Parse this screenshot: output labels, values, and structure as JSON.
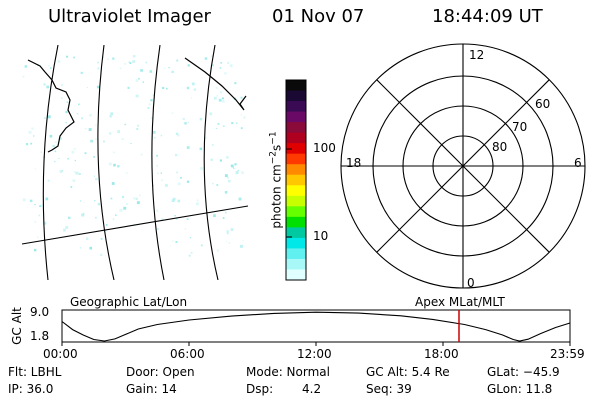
{
  "header": {
    "title": "Ultraviolet Imager",
    "date": "01 Nov 07",
    "time": "18:44:09 UT"
  },
  "panels": {
    "left_label": "Geographic Lat/Lon",
    "right_label": "Apex MLat/MLT"
  },
  "colorbar": {
    "label_main": "photon cm",
    "label_sup1": "−2",
    "label_s": "s",
    "label_sup2": "−1",
    "ticks": [
      "100",
      "10"
    ],
    "colors": [
      "#0a0a0a",
      "#1a0a33",
      "#3a0a55",
      "#6a0a66",
      "#8a0a3a",
      "#b00020",
      "#e00000",
      "#ff3a00",
      "#ff8a00",
      "#ffc800",
      "#ffff00",
      "#c8ff00",
      "#66ff00",
      "#00e000",
      "#00c8a0",
      "#00e8e8",
      "#60f0f0",
      "#a8f8f8",
      "#e0ffff"
    ]
  },
  "polar": {
    "mlt_labels": [
      "12",
      "18",
      "6",
      "0"
    ],
    "lat_labels": [
      "60",
      "70",
      "80"
    ]
  },
  "orbit_plot": {
    "ylabel": "GC Alt",
    "ymax": "9.0",
    "ymin": "1.8",
    "x_ticks": [
      "00:00",
      "06:00",
      "12:00",
      "18:00",
      "23:59"
    ],
    "marker_time_hours": 18.74,
    "marker_color": "#cc0000"
  },
  "info": {
    "flt": "Flt: LBHL",
    "ip": "IP: 36.0",
    "door": "Door: Open",
    "gain": "Gain: 14",
    "mode": "Mode: Normal",
    "dsp_label": "Dsp:",
    "dsp_value": "4.2",
    "gc_alt": "GC Alt: 5.4 Re",
    "seq": "Seq: 39",
    "glat": "GLat: −45.9",
    "glon": "GLon:  11.8"
  }
}
